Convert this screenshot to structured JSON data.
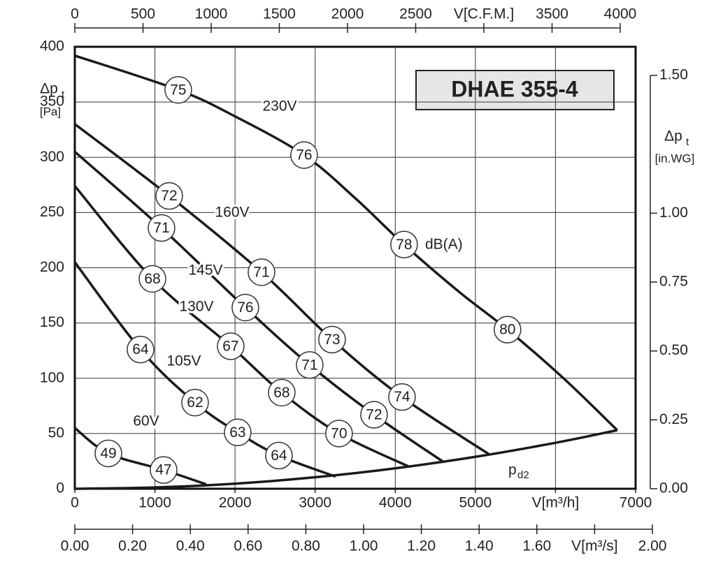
{
  "chart_data": {
    "type": "line",
    "title": "DHAE 355-4",
    "ylabel": "Δp",
    "ylabel_sub": "t",
    "yunit": "[Pa]",
    "y2label": "Δp",
    "y2label_sub": "t",
    "y2unit": "[in.WG]",
    "db_label": "dB(A)",
    "xlim": [
      0,
      7000
    ],
    "xticks": [
      0,
      1000,
      2000,
      3000,
      4000,
      5000,
      {
        "value": 6000,
        "label": "V[m³/h]"
      },
      7000
    ],
    "ylim": [
      0,
      400
    ],
    "yticks": [
      0,
      50,
      100,
      150,
      200,
      250,
      300,
      350,
      400
    ],
    "x2lim": [
      0,
      4000
    ],
    "x2ticks": [
      0,
      500,
      1000,
      1500,
      2000,
      2500,
      {
        "value": 3000,
        "label": "V[C.F.M.]"
      },
      3500,
      4000
    ],
    "x3lim": [
      0,
      2
    ],
    "x3ticks": [
      {
        "value": 0,
        "label": "0.00"
      },
      {
        "value": 0.2,
        "label": "0.20"
      },
      {
        "value": 0.4,
        "label": "0.40"
      },
      {
        "value": 0.6,
        "label": "0.60"
      },
      {
        "value": 0.8,
        "label": "0.80"
      },
      {
        "value": 1,
        "label": "1.00"
      },
      {
        "value": 1.2,
        "label": "1.20"
      },
      {
        "value": 1.4,
        "label": "1.40"
      },
      {
        "value": 1.6,
        "label": "1.60"
      },
      {
        "value": 1.8,
        "label": "V[m³/s]"
      },
      {
        "value": 2,
        "label": "2.00"
      }
    ],
    "y2lim": [
      0,
      1.5
    ],
    "y2ticks": [
      {
        "value": 0,
        "label": "0.00"
      },
      {
        "value": 0.25,
        "label": "0.25"
      },
      {
        "value": 0.5,
        "label": "0.50"
      },
      {
        "value": 0.75,
        "label": "0.75"
      },
      {
        "value": 1,
        "label": "1.00"
      },
      {
        "value": 1.5,
        "label": "1.50"
      }
    ],
    "grid": true,
    "color": "#1a1a1a",
    "series": [
      {
        "name": "230V",
        "x": [
          0,
          1291,
          2000,
          2862,
          3500,
          4110,
          4800,
          5401,
          6100,
          6771
        ],
        "values": [
          392,
          361,
          337,
          302,
          263,
          221,
          178,
          144,
          100,
          53
        ],
        "db": {
          "x": [
            1291,
            2862,
            4110,
            5401
          ],
          "y": [
            361,
            302,
            221,
            144
          ],
          "values": [
            75,
            76,
            78,
            80
          ]
        }
      },
      {
        "name": "160V",
        "x": [
          0,
          1178,
          2330,
          3211,
          4084,
          5175
        ],
        "values": [
          330,
          265,
          196,
          135,
          83,
          31
        ],
        "db": {
          "x": [
            1178,
            2330,
            3211,
            4084
          ],
          "y": [
            265,
            196,
            135,
            83
          ],
          "values": [
            72,
            71,
            73,
            74
          ]
        }
      },
      {
        "name": "145V",
        "x": [
          0,
          1082,
          2129,
          2932,
          3735,
          4607
        ],
        "values": [
          305,
          236,
          164,
          112,
          67,
          24
        ],
        "db": {
          "x": [
            1082,
            2129,
            2932,
            3735
          ],
          "y": [
            236,
            164,
            112,
            67
          ],
          "values": [
            71,
            76,
            71,
            72
          ]
        }
      },
      {
        "name": "130V",
        "x": [
          0,
          969,
          1946,
          2583,
          3298,
          4171
        ],
        "values": [
          274,
          190,
          129,
          87,
          50,
          20
        ],
        "db": {
          "x": [
            969,
            1946,
            2583,
            3298
          ],
          "y": [
            190,
            129,
            87,
            50
          ],
          "values": [
            68,
            67,
            68,
            70
          ]
        }
      },
      {
        "name": "105V",
        "x": [
          0,
          820,
          1501,
          2033,
          2548,
          3255
        ],
        "values": [
          205,
          126,
          78,
          51,
          30,
          11
        ],
        "db": {
          "x": [
            820,
            1501,
            2033,
            2548
          ],
          "y": [
            126,
            78,
            51,
            30
          ],
          "values": [
            64,
            62,
            63,
            64
          ]
        }
      },
      {
        "name": "60V",
        "x": [
          0,
          419,
          1108,
          1640
        ],
        "values": [
          55,
          32,
          17,
          4
        ],
        "db": {
          "x": [
            419,
            1108
          ],
          "y": [
            32,
            17
          ],
          "values": [
            49,
            47
          ]
        }
      },
      {
        "name": "p",
        "name_sub": "d2",
        "x": [
          0,
          1000,
          2000,
          3000,
          4000,
          5000,
          6000,
          6771
        ],
        "values": [
          0,
          1.2,
          4.6,
          10.4,
          18.5,
          28.9,
          41.6,
          53
        ]
      }
    ]
  }
}
